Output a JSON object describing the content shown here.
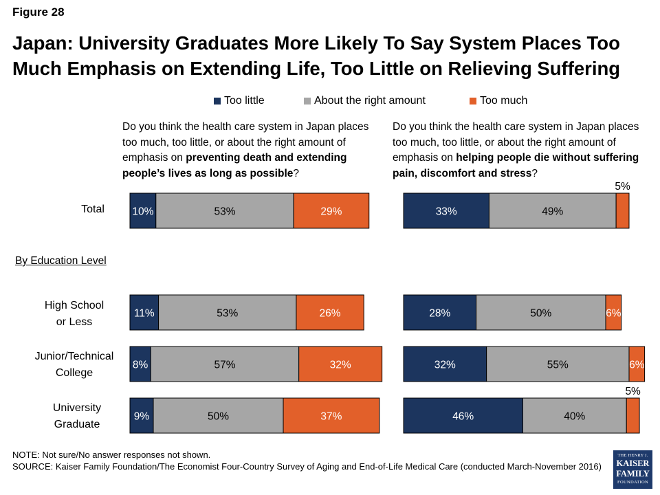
{
  "figure_label": "Figure 28",
  "title": "Japan: University Graduates More Likely To Say System Places Too Much Emphasis on Extending Life, Too Little on Relieving Suffering",
  "legend": [
    {
      "label": "Too little",
      "color": "#1c355e"
    },
    {
      "label": "About the right amount",
      "color": "#a6a6a6"
    },
    {
      "label": "Too much",
      "color": "#e2602a"
    }
  ],
  "questions": {
    "left": {
      "text_before": "Do you think the health care system in Japan places too much, too little, or about the right amount of emphasis on ",
      "text_bold": "preventing death and extending people’s lives as long as possible",
      "text_after": "?"
    },
    "right": {
      "text_before": "Do you think the health care system in Japan places too much, too little, or about the right amount of emphasis on ",
      "text_bold": "helping people die without suffering pain, discomfort and stress",
      "text_after": "?"
    }
  },
  "rows": [
    {
      "label_lines": [
        "Total"
      ]
    },
    {
      "label_lines": [
        "High School",
        "or Less"
      ]
    },
    {
      "label_lines": [
        "Junior/Technical",
        "College"
      ]
    },
    {
      "label_lines": [
        "University",
        "Graduate"
      ]
    }
  ],
  "group_label": "By Education Level",
  "chart_data": [
    {
      "type": "bar",
      "orientation": "horizontal",
      "stacked": true,
      "title": "preventing death and extending people’s lives as long as possible",
      "categories": [
        "Total",
        "High School or Less",
        "Junior/Technical College",
        "University Graduate"
      ],
      "series": [
        {
          "name": "Too little",
          "values": [
            10,
            11,
            8,
            9
          ],
          "labels": [
            "10%",
            "11%",
            "8%",
            "9%"
          ]
        },
        {
          "name": "About the right amount",
          "values": [
            53,
            53,
            57,
            50
          ],
          "labels": [
            "53%",
            "53%",
            "57%",
            "50%"
          ]
        },
        {
          "name": "Too much",
          "values": [
            29,
            26,
            32,
            37
          ],
          "labels": [
            "29%",
            "26%",
            "32%",
            "37%"
          ]
        }
      ],
      "xlim": [
        0,
        100
      ]
    },
    {
      "type": "bar",
      "orientation": "horizontal",
      "stacked": true,
      "title": "helping people die without suffering pain, discomfort and stress",
      "categories": [
        "Total",
        "High School or Less",
        "Junior/Technical College",
        "University Graduate"
      ],
      "series": [
        {
          "name": "Too little",
          "values": [
            33,
            28,
            32,
            46
          ],
          "labels": [
            "33%",
            "28%",
            "32%",
            "46%"
          ]
        },
        {
          "name": "About the right amount",
          "values": [
            49,
            50,
            55,
            40
          ],
          "labels": [
            "49%",
            "50%",
            "55%",
            "40%"
          ]
        },
        {
          "name": "Too much",
          "values": [
            5,
            6,
            6,
            5
          ],
          "labels": [
            "5%",
            "6%",
            "6%",
            "5%"
          ]
        }
      ],
      "xlim": [
        0,
        100
      ]
    }
  ],
  "note": "NOTE: Not sure/No answer responses not shown.",
  "source": "SOURCE: Kaiser Family Foundation/The Economist Four-Country Survey of Aging and End-of-Life Medical Care (conducted March-November 2016)",
  "logo": {
    "line1": "THE HENRY J.",
    "line2a": "KAISER",
    "line2b": "FAMILY",
    "line3": "FOUNDATION"
  }
}
